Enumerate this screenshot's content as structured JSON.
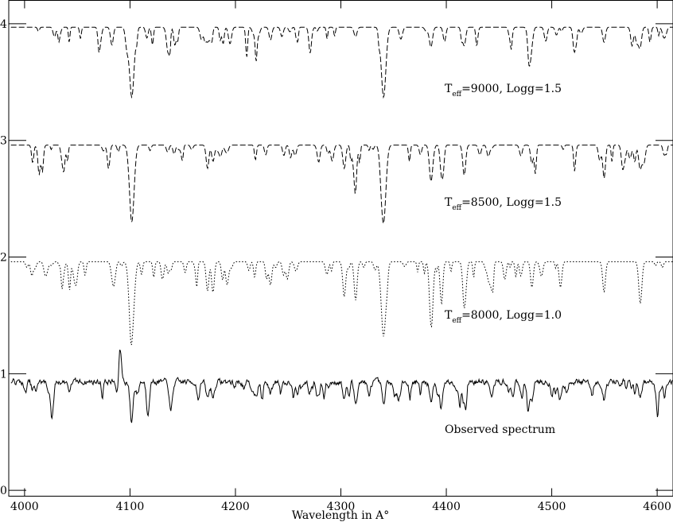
{
  "chart_data": {
    "type": "line",
    "title": "",
    "xlabel": "Wavelength in A°",
    "ylabel": "",
    "xlim": [
      3985,
      4615
    ],
    "ylim": [
      -0.05,
      4.2
    ],
    "x_ticks": [
      4000,
      4100,
      4200,
      4300,
      4400,
      4500,
      4600
    ],
    "y_ticks": [
      0,
      1,
      2,
      3,
      4
    ],
    "grid": false,
    "series": [
      {
        "name": "Observed spectrum",
        "label_main": "Observed spectrum",
        "label_sub": "",
        "label_rest": "",
        "line_style": "solid",
        "continuum": 0.93,
        "noise": 0.045,
        "seed": 7,
        "lines": [
          {
            "x": 4090.5,
            "depth": -0.29,
            "width": 1.4
          },
          {
            "x": 4101.7,
            "depth": 0.17,
            "width": 1.5
          },
          {
            "x": 4173.5,
            "depth": 0.14,
            "width": 1.5
          },
          {
            "x": 4178.8,
            "depth": 0.13,
            "width": 1.5
          },
          {
            "x": 4233.2,
            "depth": 0.1,
            "width": 1.5
          },
          {
            "x": 4303.2,
            "depth": 0.14,
            "width": 1.5
          },
          {
            "x": 4314.0,
            "depth": 0.18,
            "width": 1.5
          },
          {
            "x": 4340.5,
            "depth": 0.2,
            "width": 1.5
          },
          {
            "x": 4351.0,
            "depth": 0.12,
            "width": 1.5
          },
          {
            "x": 4385.4,
            "depth": 0.16,
            "width": 1.5
          },
          {
            "x": 4395.0,
            "depth": 0.24,
            "width": 1.3
          },
          {
            "x": 4417.0,
            "depth": 0.18,
            "width": 1.5
          },
          {
            "x": 4443.0,
            "depth": 0.14,
            "width": 1.5
          },
          {
            "x": 4481.2,
            "depth": 0.15,
            "width": 1.5
          },
          {
            "x": 4508.3,
            "depth": 0.1,
            "width": 1.5
          },
          {
            "x": 4549.6,
            "depth": 0.15,
            "width": 1.5
          },
          {
            "x": 4583.8,
            "depth": 0.14,
            "width": 1.5
          }
        ]
      },
      {
        "name": "Teff=8000, Logg=1.0",
        "label_main": "T",
        "label_sub": "eff",
        "label_rest": "=8000, Logg=1.0",
        "line_style": "dotted",
        "continuum": 1.96,
        "noise": 0.0,
        "seed": 11,
        "lines": [
          {
            "x": 4101.7,
            "depth": 0.62,
            "width": 2.2
          },
          {
            "x": 4340.5,
            "depth": 0.64,
            "width": 2.2
          },
          {
            "x": 4385.4,
            "depth": 0.4,
            "width": 1.5
          },
          {
            "x": 4395.4,
            "depth": 0.36,
            "width": 1.3
          },
          {
            "x": 4417.0,
            "depth": 0.38,
            "width": 1.4
          },
          {
            "x": 4314.0,
            "depth": 0.33,
            "width": 1.4
          },
          {
            "x": 4303.2,
            "depth": 0.3,
            "width": 1.4
          },
          {
            "x": 4583.8,
            "depth": 0.26,
            "width": 1.4
          },
          {
            "x": 4508.3,
            "depth": 0.22,
            "width": 1.3
          },
          {
            "x": 4549.6,
            "depth": 0.26,
            "width": 1.3
          },
          {
            "x": 4173.5,
            "depth": 0.25,
            "width": 1.3
          },
          {
            "x": 4178.8,
            "depth": 0.22,
            "width": 1.3
          },
          {
            "x": 4233.2,
            "depth": 0.2,
            "width": 1.3
          },
          {
            "x": 4481.2,
            "depth": 0.22,
            "width": 1.3
          },
          {
            "x": 4443.0,
            "depth": 0.2,
            "width": 1.3
          }
        ]
      },
      {
        "name": "Teff=8500, Logg=1.5",
        "label_main": "T",
        "label_sub": "eff",
        "label_rest": "=8500, Logg=1.5",
        "line_style": "dashed",
        "continuum": 2.96,
        "noise": 0.0,
        "seed": 23,
        "lines": [
          {
            "x": 4101.7,
            "depth": 0.66,
            "width": 2.2
          },
          {
            "x": 4340.5,
            "depth": 0.66,
            "width": 2.2
          },
          {
            "x": 4385.4,
            "depth": 0.3,
            "width": 1.5
          },
          {
            "x": 4395.4,
            "depth": 0.24,
            "width": 1.3
          },
          {
            "x": 4417.0,
            "depth": 0.26,
            "width": 1.4
          },
          {
            "x": 4314.0,
            "depth": 0.24,
            "width": 1.4
          },
          {
            "x": 4303.2,
            "depth": 0.2,
            "width": 1.4
          },
          {
            "x": 4583.8,
            "depth": 0.2,
            "width": 1.4
          },
          {
            "x": 4549.6,
            "depth": 0.18,
            "width": 1.3
          },
          {
            "x": 4173.5,
            "depth": 0.2,
            "width": 1.3
          },
          {
            "x": 4178.8,
            "depth": 0.14,
            "width": 1.3
          },
          {
            "x": 4481.2,
            "depth": 0.16,
            "width": 1.3
          }
        ]
      },
      {
        "name": "Teff=9000, Logg=1.5",
        "label_main": "T",
        "label_sub": "eff",
        "label_rest": "=9000, Logg=1.5",
        "line_style": "dashed",
        "continuum": 3.97,
        "noise": 0.0,
        "seed": 37,
        "lines": [
          {
            "x": 4101.7,
            "depth": 0.6,
            "width": 2.2
          },
          {
            "x": 4340.5,
            "depth": 0.6,
            "width": 2.2
          },
          {
            "x": 4385.4,
            "depth": 0.17,
            "width": 1.5
          },
          {
            "x": 4417.0,
            "depth": 0.16,
            "width": 1.4
          },
          {
            "x": 4583.8,
            "depth": 0.17,
            "width": 1.4
          },
          {
            "x": 4549.6,
            "depth": 0.13,
            "width": 1.3
          },
          {
            "x": 4173.5,
            "depth": 0.12,
            "width": 1.3
          },
          {
            "x": 4233.2,
            "depth": 0.11,
            "width": 1.3
          },
          {
            "x": 4481.2,
            "depth": 0.12,
            "width": 1.3
          }
        ]
      }
    ]
  }
}
